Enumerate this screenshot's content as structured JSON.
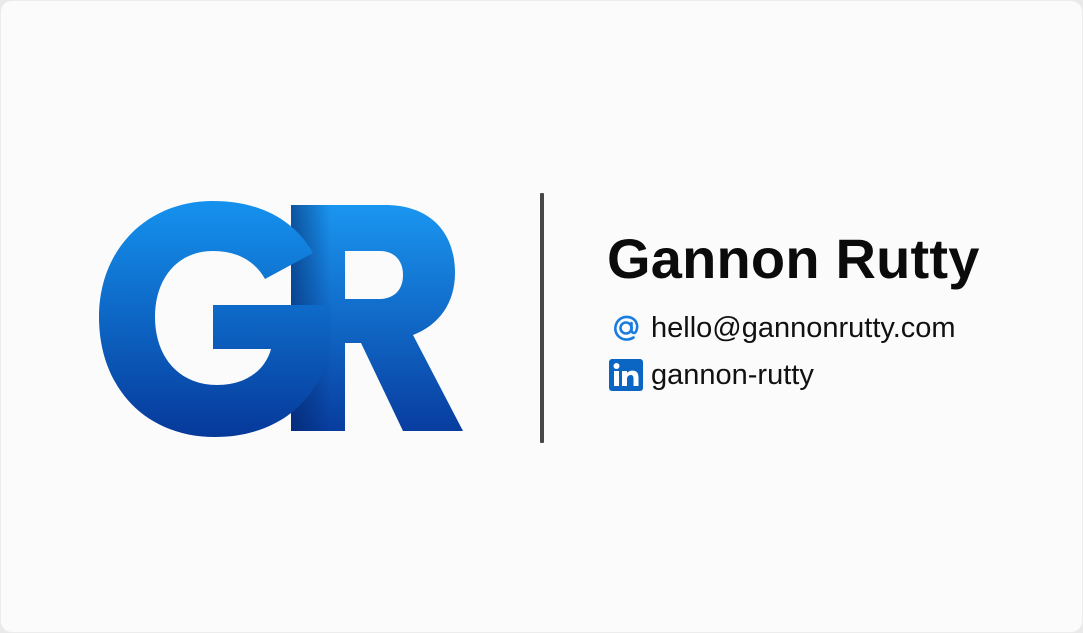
{
  "card": {
    "monogram": "GR",
    "name": "Gannon Rutty",
    "contacts": [
      {
        "icon": "at-sign-icon",
        "text": "hello@gannonrutty.com"
      },
      {
        "icon": "linkedin-icon",
        "text": "gannon-rutty"
      }
    ]
  },
  "colors": {
    "logo_gradient_top": "#1592ee",
    "logo_gradient_bottom": "#06399a",
    "linkedin_blue": "#0a66c2",
    "at_icon_blue": "#1a7be0",
    "divider": "#474747",
    "text": "#0b0b0b"
  }
}
